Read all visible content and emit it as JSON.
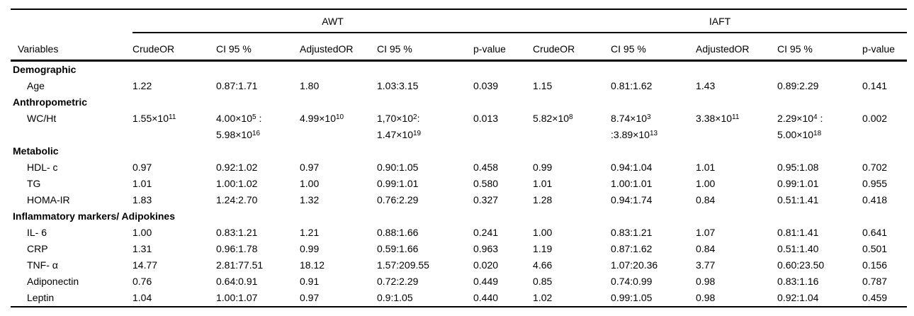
{
  "colors": {
    "background": "#ffffff",
    "text": "#000000",
    "rule": "#000000"
  },
  "table": {
    "groups": [
      "AWT",
      "IAFT"
    ],
    "columns": [
      "Variables",
      "CrudeOR",
      "CI 95 %",
      "AdjustedOR",
      "CI 95 %",
      "p-value",
      "CrudeOR",
      "CI 95 %",
      "AdjustedOR",
      "CI 95 %",
      "p-value"
    ],
    "sections": [
      {
        "label": "Demographic",
        "rows": [
          {
            "variable": "Age",
            "cells": [
              "1.22",
              "0.87:1.71",
              "1.80",
              "1.03:3.15",
              "0.039",
              "1.15",
              "0.81:1.62",
              "1.43",
              "0.89:2.29",
              "0.141"
            ]
          }
        ]
      },
      {
        "label": "Anthropometric",
        "rows": [
          {
            "variable": "WC/Ht",
            "cells": [
              "1.55×10^{11}",
              "4.00×10^{5} :\n5.98×10^{16}",
              "4.99×10^{10}",
              "1,70×10^{2}:\n1.47×10^{19}",
              "0.013",
              "5.82×10^{8}",
              "8.74×10^{3}\n:3.89×10^{13}",
              "3.38×10^{11}",
              "2.29×10^{4} :\n5.00×10^{18}",
              "0.002"
            ]
          }
        ]
      },
      {
        "label": "Metabolic",
        "rows": [
          {
            "variable": "HDL- c",
            "cells": [
              "0.97",
              "0.92:1.02",
              "0.97",
              "0.90:1.05",
              "0.458",
              "0.99",
              "0.94:1.04",
              "1.01",
              "0.95:1.08",
              "0.702"
            ]
          },
          {
            "variable": "TG",
            "cells": [
              "1.01",
              "1.00:1.02",
              "1.00",
              "0.99:1.01",
              "0.580",
              "1.01",
              "1.00:1.01",
              "1.00",
              "0.99:1.01",
              "0.955"
            ]
          },
          {
            "variable": "HOMA-IR",
            "cells": [
              "1.83",
              "1.24:2.70",
              "1.32",
              "0.76:2.29",
              "0.327",
              "1.28",
              "0.94:1.74",
              "0.84",
              "0.51:1.41",
              "0.418"
            ]
          }
        ]
      },
      {
        "label": "Inflammatory markers/ Adipokines",
        "rows": [
          {
            "variable": "IL- 6",
            "cells": [
              "1.00",
              "0.83:1.21",
              "1.21",
              "0.88:1.66",
              "0.241",
              "1.00",
              "0.83:1.21",
              "1.07",
              "0.81:1.41",
              "0.641"
            ]
          },
          {
            "variable": "CRP",
            "cells": [
              "1.31",
              "0.96:1.78",
              "0.99",
              "0.59:1.66",
              "0.963",
              "1.19",
              "0.87:1.62",
              "0.84",
              "0.51:1.40",
              "0.501"
            ]
          },
          {
            "variable": "TNF- α",
            "cells": [
              "14.77",
              "2.81:77.51",
              "18.12",
              "1.57:209.55",
              "0.020",
              "4.66",
              "1.07:20.36",
              "3.77",
              "0.60:23.50",
              "0.156"
            ]
          },
          {
            "variable": "Adiponectin",
            "cells": [
              "0.76",
              "0.64:0.91",
              "0.91",
              "0.72:2.29",
              "0.449",
              "0.85",
              "0.74:0.99",
              "0.98",
              "0.83:1.16",
              "0.787"
            ]
          },
          {
            "variable": "Leptin",
            "cells": [
              "1.04",
              "1.00:1.07",
              "0.97",
              "0.9:1.05",
              "0.440",
              "1.02",
              "0.99:1.05",
              "0.98",
              "0.92:1.04",
              "0.459"
            ]
          }
        ]
      }
    ]
  }
}
